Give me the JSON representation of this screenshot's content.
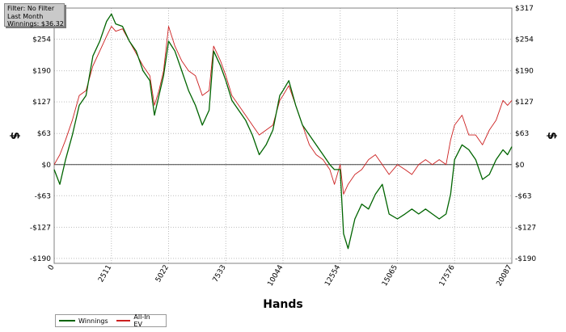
{
  "filter_info": {
    "line1": "Filter: No Filter",
    "line2": "Last Month",
    "line3": "Winnings: $36.32"
  },
  "chart_data": {
    "type": "line",
    "xlabel": "Hands",
    "ylabel": "$",
    "xlim": [
      0,
      20087
    ],
    "ylim": [
      -200,
      317
    ],
    "x_ticks": [
      0,
      2511,
      5022,
      7533,
      10044,
      12554,
      15065,
      17576,
      20087
    ],
    "y_ticks": [
      317,
      254,
      190,
      127,
      63,
      0,
      -63,
      -127,
      -190
    ],
    "y_tick_labels": [
      "$317",
      "$254",
      "$190",
      "$127",
      "$63",
      "$0",
      "-$63",
      "-$127",
      "-$190"
    ],
    "grid": true,
    "legend_position": "bottom-left",
    "series": [
      {
        "name": "Winnings",
        "color": "#006400",
        "x": [
          0,
          250,
          500,
          800,
          1100,
          1400,
          1700,
          2000,
          2300,
          2511,
          2700,
          3000,
          3300,
          3600,
          3900,
          4200,
          4400,
          4600,
          4800,
          5022,
          5300,
          5600,
          5900,
          6200,
          6500,
          6800,
          7000,
          7300,
          7533,
          7800,
          8100,
          8400,
          8700,
          9000,
          9300,
          9600,
          9900,
          10044,
          10300,
          10600,
          10900,
          11200,
          11500,
          11800,
          12100,
          12300,
          12554,
          12700,
          12900,
          13200,
          13500,
          13800,
          14100,
          14400,
          14700,
          15065,
          15400,
          15700,
          16000,
          16300,
          16600,
          16900,
          17200,
          17400,
          17576,
          17900,
          18200,
          18500,
          18800,
          19100,
          19400,
          19700,
          19900,
          20087
        ],
        "y": [
          -10,
          -40,
          10,
          60,
          120,
          140,
          220,
          250,
          290,
          305,
          285,
          280,
          250,
          230,
          190,
          170,
          100,
          140,
          180,
          250,
          230,
          190,
          150,
          120,
          80,
          110,
          230,
          200,
          170,
          130,
          110,
          90,
          60,
          20,
          40,
          70,
          140,
          150,
          170,
          120,
          80,
          60,
          40,
          20,
          0,
          -10,
          -10,
          -140,
          -170,
          -110,
          -80,
          -90,
          -60,
          -40,
          -100,
          -110,
          -100,
          -90,
          -100,
          -90,
          -100,
          -110,
          -100,
          -60,
          10,
          40,
          30,
          10,
          -30,
          -20,
          10,
          30,
          20,
          36.32
        ]
      },
      {
        "name": "All-In EV",
        "color": "#cc2020",
        "x": [
          0,
          250,
          500,
          800,
          1100,
          1400,
          1700,
          2000,
          2300,
          2511,
          2700,
          3000,
          3300,
          3600,
          3900,
          4200,
          4400,
          4600,
          4800,
          5022,
          5300,
          5600,
          5900,
          6200,
          6500,
          6800,
          7000,
          7300,
          7533,
          7800,
          8100,
          8400,
          8700,
          9000,
          9300,
          9600,
          9900,
          10044,
          10300,
          10600,
          10900,
          11200,
          11500,
          11800,
          12100,
          12300,
          12554,
          12700,
          12900,
          13200,
          13500,
          13800,
          14100,
          14400,
          14700,
          15065,
          15400,
          15700,
          16000,
          16300,
          16600,
          16900,
          17200,
          17400,
          17576,
          17900,
          18200,
          18500,
          18800,
          19100,
          19400,
          19700,
          19900,
          20087
        ],
        "y": [
          0,
          20,
          50,
          90,
          140,
          150,
          200,
          230,
          260,
          280,
          270,
          275,
          250,
          225,
          200,
          180,
          120,
          150,
          190,
          280,
          240,
          210,
          190,
          180,
          140,
          150,
          240,
          210,
          180,
          140,
          120,
          100,
          80,
          60,
          70,
          80,
          130,
          140,
          160,
          120,
          80,
          40,
          20,
          10,
          -10,
          -40,
          0,
          -60,
          -40,
          -20,
          -10,
          10,
          20,
          0,
          -20,
          0,
          -10,
          -20,
          0,
          10,
          0,
          10,
          0,
          50,
          80,
          100,
          60,
          60,
          40,
          70,
          90,
          130,
          120,
          130
        ]
      }
    ]
  }
}
